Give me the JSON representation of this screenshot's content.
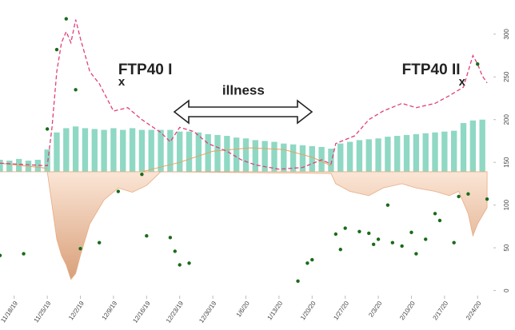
{
  "chart_data": {
    "type": "combo",
    "xlim": [
      "2019-11-15",
      "2020-02-27"
    ],
    "xticks": [
      {
        "value": "2019-11-18",
        "label": "11/18/19"
      },
      {
        "value": "2019-11-25",
        "label": "11/25/19"
      },
      {
        "value": "2019-12-02",
        "label": "12/2/19"
      },
      {
        "value": "2019-12-09",
        "label": "12/9/19"
      },
      {
        "value": "2019-12-16",
        "label": "12/16/19"
      },
      {
        "value": "2019-12-23",
        "label": "12/23/19"
      },
      {
        "value": "2019-12-30",
        "label": "12/30/19"
      },
      {
        "value": "2020-01-06",
        "label": "1/6/20"
      },
      {
        "value": "2020-01-13",
        "label": "1/13/20"
      },
      {
        "value": "2020-01-20",
        "label": "1/20/20"
      },
      {
        "value": "2020-01-27",
        "label": "1/27/20"
      },
      {
        "value": "2020-02-03",
        "label": "2/3/20"
      },
      {
        "value": "2020-02-10",
        "label": "2/10/20"
      },
      {
        "value": "2020-02-17",
        "label": "2/17/20"
      },
      {
        "value": "2020-02-24",
        "label": "2/24/20"
      }
    ],
    "ylim": [
      -6,
      340
    ],
    "yticks": [
      0,
      50,
      100,
      150,
      200,
      250,
      300
    ],
    "baseline": 139,
    "annotations": [
      {
        "text": "FTP40 I",
        "x": "2019-12-10"
      },
      {
        "text": "x",
        "x": "2019-12-10"
      },
      {
        "text": "illness",
        "x": "2020-01-01"
      },
      {
        "text": "FTP40 II",
        "x": "2020-02-08"
      },
      {
        "text": "x",
        "x": "2020-02-20"
      }
    ],
    "series": [
      {
        "kind": "bar",
        "color": "#8fd8c4",
        "x": [
          "2019-11-15",
          "2019-11-17",
          "2019-11-19",
          "2019-11-21",
          "2019-11-23",
          "2019-11-25",
          "2019-11-27",
          "2019-11-29",
          "2019-12-01",
          "2019-12-03",
          "2019-12-05",
          "2019-12-07",
          "2019-12-09",
          "2019-12-11",
          "2019-12-13",
          "2019-12-15",
          "2019-12-17",
          "2019-12-19",
          "2019-12-21",
          "2019-12-23",
          "2019-12-25",
          "2019-12-27",
          "2019-12-29",
          "2019-12-31",
          "2020-01-02",
          "2020-01-04",
          "2020-01-06",
          "2020-01-08",
          "2020-01-10",
          "2020-01-12",
          "2020-01-14",
          "2020-01-16",
          "2020-01-18",
          "2020-01-20",
          "2020-01-22",
          "2020-01-24",
          "2020-01-26",
          "2020-01-28",
          "2020-01-30",
          "2020-02-01",
          "2020-02-03",
          "2020-02-05",
          "2020-02-07",
          "2020-02-09",
          "2020-02-11",
          "2020-02-13",
          "2020-02-15",
          "2020-02-17",
          "2020-02-19",
          "2020-02-21",
          "2020-02-23",
          "2020-02-25"
        ],
        "values": [
          153,
          152,
          154,
          152,
          153,
          165,
          185,
          190,
          192,
          190,
          189,
          188,
          190,
          188,
          190,
          188,
          188,
          188,
          188,
          186,
          186,
          185,
          183,
          182,
          181,
          179,
          178,
          176,
          175,
          174,
          172,
          171,
          170,
          169,
          168,
          166,
          172,
          174,
          176,
          177,
          178,
          180,
          181,
          182,
          183,
          184,
          185,
          186,
          187,
          196,
          199,
          200
        ]
      },
      {
        "kind": "area",
        "color": "#e7ac82",
        "x": [
          "2019-11-15",
          "2019-11-25",
          "2019-11-26",
          "2019-11-27",
          "2019-11-28",
          "2019-11-29",
          "2019-11-30",
          "2019-12-01",
          "2019-12-02",
          "2019-12-04",
          "2019-12-07",
          "2019-12-10",
          "2019-12-13",
          "2019-12-16",
          "2019-12-19",
          "2020-01-24",
          "2020-01-25",
          "2020-01-28",
          "2020-02-01",
          "2020-02-04",
          "2020-02-08",
          "2020-02-11",
          "2020-02-15",
          "2020-02-18",
          "2020-02-20",
          "2020-02-22",
          "2020-02-23",
          "2020-02-24",
          "2020-02-26"
        ],
        "values": [
          139,
          139,
          100,
          60,
          41,
          30,
          13,
          20,
          41,
          78,
          106,
          120,
          115,
          123,
          139,
          137,
          125,
          116,
          111,
          120,
          125,
          120,
          116,
          111,
          116,
          90,
          64,
          78,
          97
        ]
      },
      {
        "kind": "line",
        "color": "#e8a060",
        "dash": false,
        "x": [
          "2019-11-15",
          "2019-11-25",
          "2019-12-05",
          "2019-12-15",
          "2019-12-23",
          "2019-12-30",
          "2020-01-07",
          "2020-01-14",
          "2020-01-20",
          "2020-01-24"
        ],
        "values": [
          149,
          143,
          null,
          139,
          150,
          163,
          167,
          165,
          156,
          146
        ]
      },
      {
        "kind": "line",
        "color": "#e0407a",
        "dash": true,
        "x": [
          "2019-11-15",
          "2019-11-25",
          "2019-11-26",
          "2019-11-27",
          "2019-11-28",
          "2019-11-29",
          "2019-11-30",
          "2019-12-01",
          "2019-12-02",
          "2019-12-04",
          "2019-12-06",
          "2019-12-09",
          "2019-12-12",
          "2019-12-15",
          "2019-12-19",
          "2019-12-21",
          "2019-12-23",
          "2019-12-26",
          "2019-12-29",
          "2020-01-02",
          "2020-01-05",
          "2020-01-08",
          "2020-01-13",
          "2020-01-18",
          "2020-01-22",
          "2020-01-24",
          "2020-01-25",
          "2020-01-29",
          "2020-02-01",
          "2020-02-04",
          "2020-02-08",
          "2020-02-11",
          "2020-02-15",
          "2020-02-18",
          "2020-02-21",
          "2020-02-23",
          "2020-02-24",
          "2020-02-25",
          "2020-02-26"
        ],
        "values": [
          149,
          146,
          191,
          256,
          290,
          303,
          290,
          317,
          295,
          256,
          242,
          210,
          214,
          200,
          185,
          174,
          191,
          186,
          172,
          163,
          153,
          147,
          142,
          144,
          153,
          148,
          172,
          181,
          200,
          210,
          219,
          214,
          219,
          228,
          238,
          275,
          265,
          251,
          243
        ]
      },
      {
        "kind": "scatter",
        "color": "#1a6b1a",
        "x": [
          "2019-11-15",
          "2019-11-20",
          "2019-11-25",
          "2019-11-27",
          "2019-11-29",
          "2019-12-01",
          "2019-12-02",
          "2019-12-06",
          "2019-12-10",
          "2019-12-15",
          "2019-12-16",
          "2019-12-21",
          "2019-12-22",
          "2019-12-23",
          "2019-12-25",
          "2020-01-17",
          "2020-01-19",
          "2020-01-20",
          "2020-01-25",
          "2020-01-26",
          "2020-01-27",
          "2020-01-30",
          "2020-02-01",
          "2020-02-02",
          "2020-02-03",
          "2020-02-05",
          "2020-02-06",
          "2020-02-08",
          "2020-02-10",
          "2020-02-11",
          "2020-02-13",
          "2020-02-15",
          "2020-02-16",
          "2020-02-19",
          "2020-02-20",
          "2020-02-22",
          "2020-02-24",
          "2020-02-26"
        ],
        "values": [
          41,
          43,
          189,
          282,
          318,
          235,
          49,
          56,
          116,
          136,
          64,
          62,
          46,
          30,
          32,
          11,
          32,
          36,
          66,
          48,
          73,
          69,
          67,
          54,
          60,
          100,
          56,
          52,
          68,
          43,
          60,
          90,
          82,
          56,
          110,
          113,
          265,
          107
        ]
      }
    ]
  }
}
